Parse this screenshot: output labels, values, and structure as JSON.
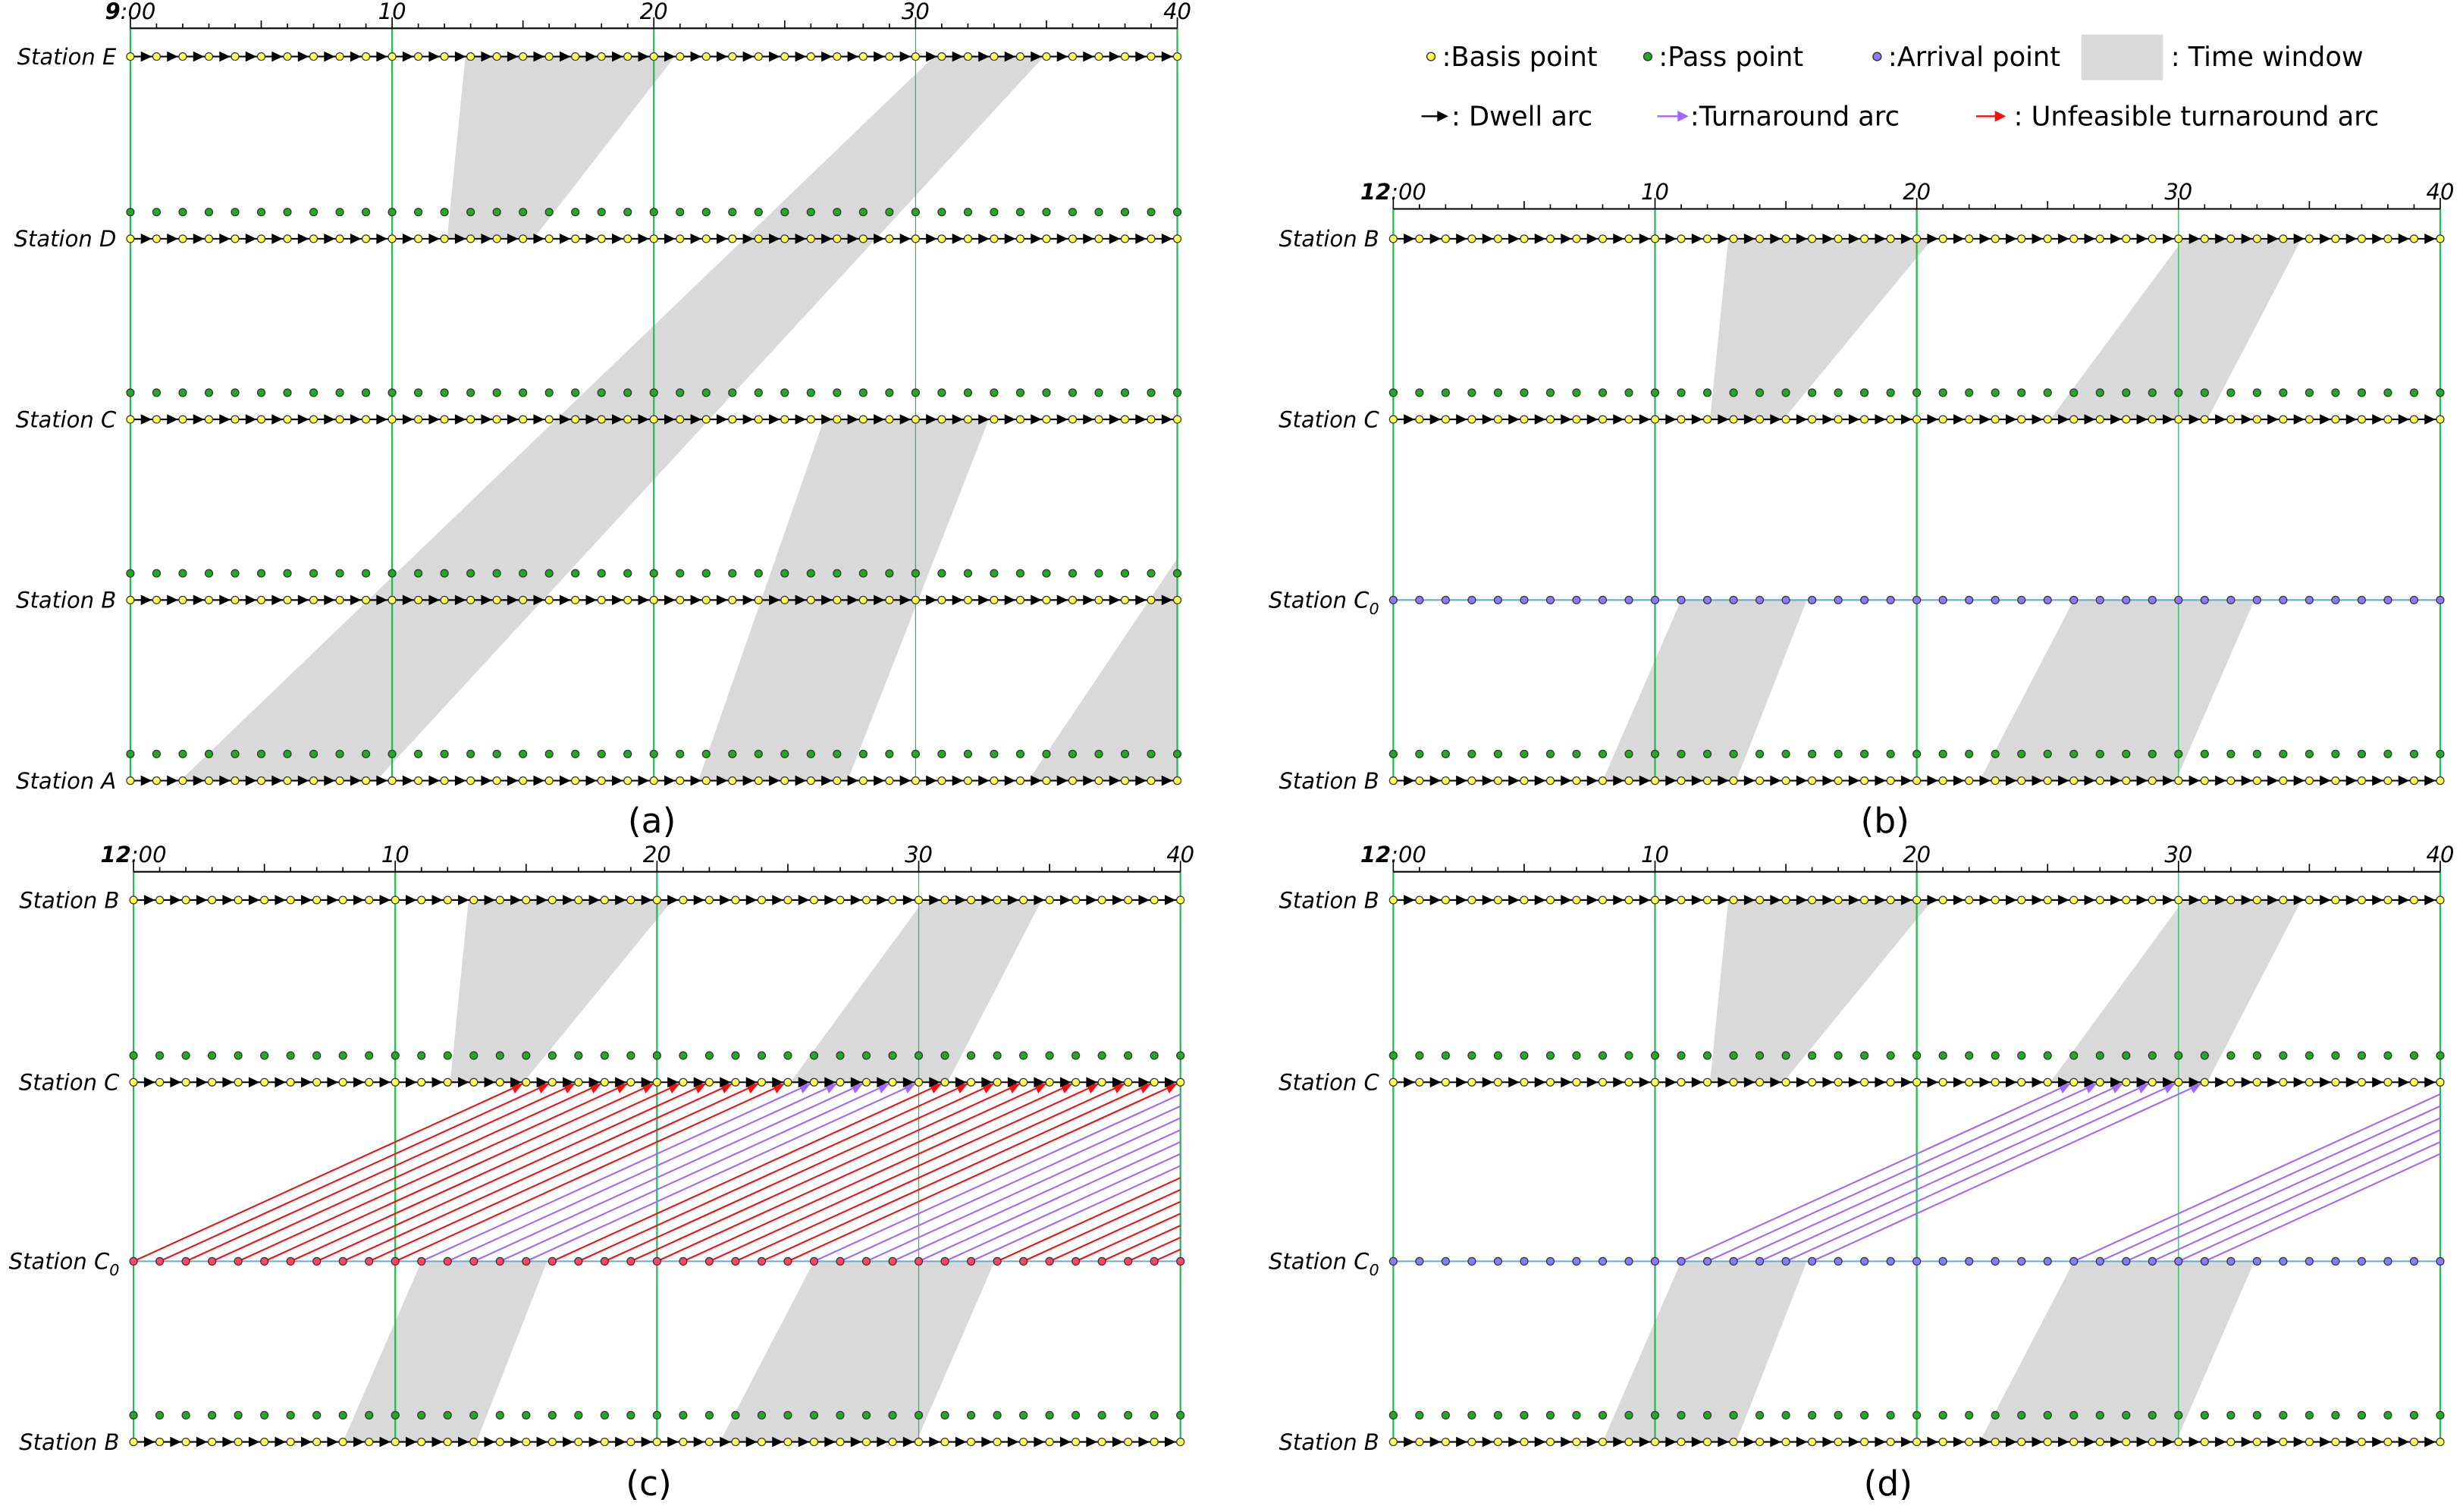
{
  "legend": {
    "basis": ":Basis point",
    "pass": ":Pass point",
    "arrival": ":Arrival point",
    "window": ": Time window",
    "dwell": ": Dwell arc",
    "turnaround": ":Turnaround arc",
    "unfeasible": ": Unfeasible turnaround arc"
  },
  "panels": [
    {
      "caption": "(a)",
      "start_hour": "9",
      "start_minute": ":00",
      "ticks": [
        "10",
        "20",
        "30",
        "40"
      ],
      "stations": [
        {
          "label": "Station E"
        },
        {
          "label": "Station D"
        },
        {
          "label": "Station C"
        },
        {
          "label": "Station B"
        },
        {
          "label": "Station A"
        }
      ]
    },
    {
      "caption": "(b)",
      "start_hour": "12",
      "start_minute": ":00",
      "ticks": [
        "10",
        "20",
        "30",
        "40"
      ],
      "stations": [
        {
          "label": "Station B"
        },
        {
          "label": "Station C"
        },
        {
          "label": "Station C",
          "sub": "0"
        },
        {
          "label": "Station B"
        }
      ]
    },
    {
      "caption": "(c)",
      "start_hour": "12",
      "start_minute": ":00",
      "ticks": [
        "10",
        "20",
        "30",
        "40"
      ],
      "stations": [
        {
          "label": "Station B"
        },
        {
          "label": "Station C"
        },
        {
          "label": "Station C",
          "sub": "0"
        },
        {
          "label": "Station B"
        }
      ]
    },
    {
      "caption": "(d)",
      "start_hour": "12",
      "start_minute": ":00",
      "ticks": [
        "10",
        "20",
        "30",
        "40"
      ],
      "stations": [
        {
          "label": "Station B"
        },
        {
          "label": "Station C"
        },
        {
          "label": "Station C",
          "sub": "0"
        },
        {
          "label": "Station B"
        }
      ]
    }
  ]
}
